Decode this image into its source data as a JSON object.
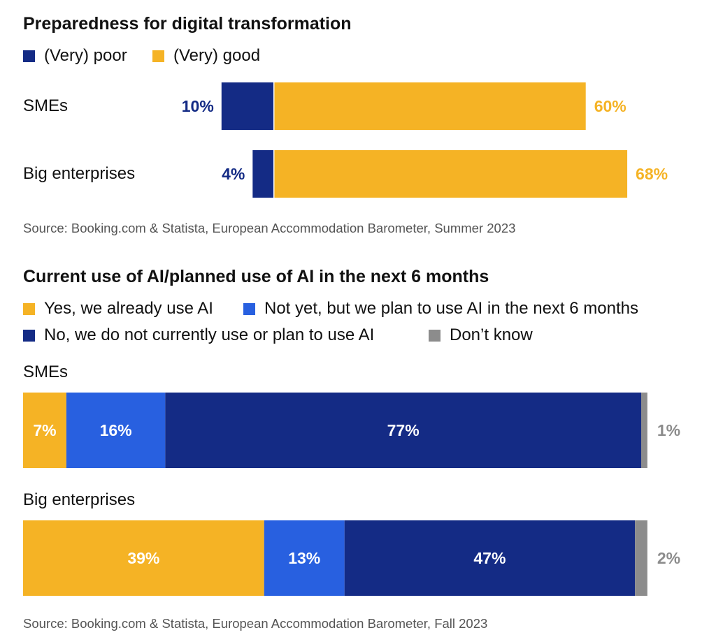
{
  "colors": {
    "poor": "#142b85",
    "good": "#f5b325",
    "yes": "#f5b325",
    "plan": "#2860e0",
    "no": "#142b85",
    "dont_know": "#8c8c8c"
  },
  "chart_data": [
    {
      "type": "bar",
      "title": "Preparedness for digital transformation",
      "legend": [
        "(Very) poor",
        "(Very) good"
      ],
      "categories": [
        "SMEs",
        "Big enterprises"
      ],
      "series": [
        {
          "name": "(Very) poor",
          "values": [
            10,
            4
          ],
          "labels": [
            "10%",
            "4%"
          ]
        },
        {
          "name": "(Very) good",
          "values": [
            60,
            68
          ],
          "labels": [
            "60%",
            "68%"
          ]
        }
      ],
      "source": "Source: Booking.com & Statista, European Accommodation Barometer, Summer 2023"
    },
    {
      "type": "bar",
      "title": "Current use of AI/planned use of AI in the next 6 months",
      "legend": [
        "Yes, we already use AI",
        "Not yet, but we plan to use AI in the next 6 months",
        "No, we do not currently use or plan to use AI",
        "Don’t know"
      ],
      "categories": [
        "SMEs",
        "Big enterprises"
      ],
      "series": [
        {
          "name": "Yes, we already use AI",
          "values": [
            7,
            39
          ],
          "labels": [
            "7%",
            "39%"
          ]
        },
        {
          "name": "Not yet, but we plan to use AI in the next 6 months",
          "values": [
            16,
            13
          ],
          "labels": [
            "16%",
            "13%"
          ]
        },
        {
          "name": "No, we do not currently use or plan to use AI",
          "values": [
            77,
            47
          ],
          "labels": [
            "77%",
            "47%"
          ]
        },
        {
          "name": "Don’t know",
          "values": [
            1,
            2
          ],
          "labels": [
            "1%",
            "2%"
          ]
        }
      ],
      "source": "Source: Booking.com & Statista, European Accommodation Barometer, Fall 2023"
    }
  ]
}
